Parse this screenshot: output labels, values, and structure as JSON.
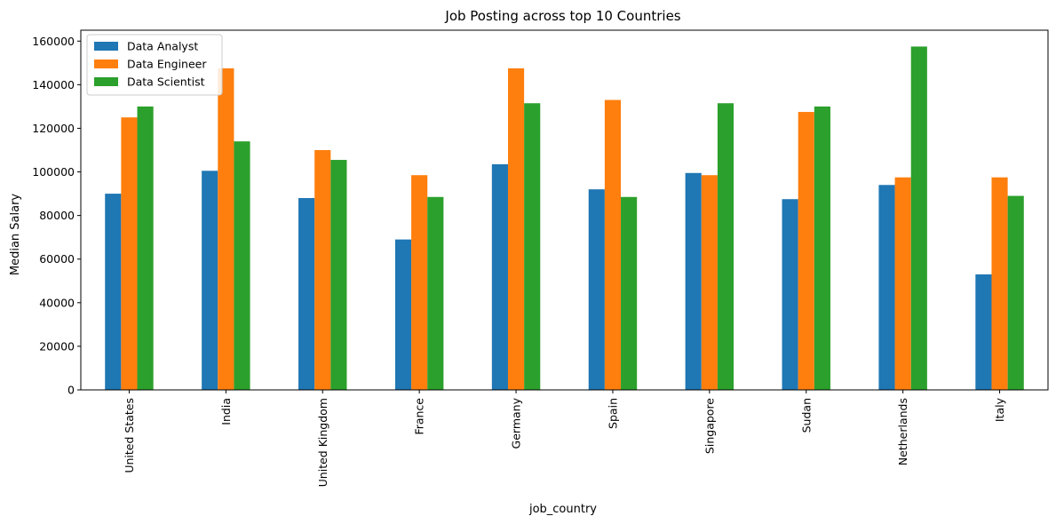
{
  "chart_data": {
    "type": "bar",
    "title": "Job Posting across top 10 Countries",
    "xlabel": "job_country",
    "ylabel": "Median Salary",
    "ylim": [
      0,
      165000
    ],
    "yticks": [
      0,
      20000,
      40000,
      60000,
      80000,
      100000,
      120000,
      140000,
      160000
    ],
    "categories": [
      "United States",
      "India",
      "United Kingdom",
      "France",
      "Germany",
      "Spain",
      "Singapore",
      "Sudan",
      "Netherlands",
      "Italy"
    ],
    "series": [
      {
        "name": "Data Analyst",
        "color": "#1f77b4",
        "values": [
          90000,
          100500,
          88000,
          69000,
          103500,
          92000,
          99500,
          87500,
          94000,
          53000
        ]
      },
      {
        "name": "Data Engineer",
        "color": "#ff7f0e",
        "values": [
          125000,
          147500,
          110000,
          98500,
          147500,
          133000,
          98500,
          127500,
          97500,
          97500
        ]
      },
      {
        "name": "Data Scientist",
        "color": "#2ca02c",
        "values": [
          130000,
          114000,
          105500,
          88500,
          131500,
          88500,
          131500,
          130000,
          157500,
          89000
        ]
      }
    ],
    "legend": "top-left",
    "grid": false
  }
}
